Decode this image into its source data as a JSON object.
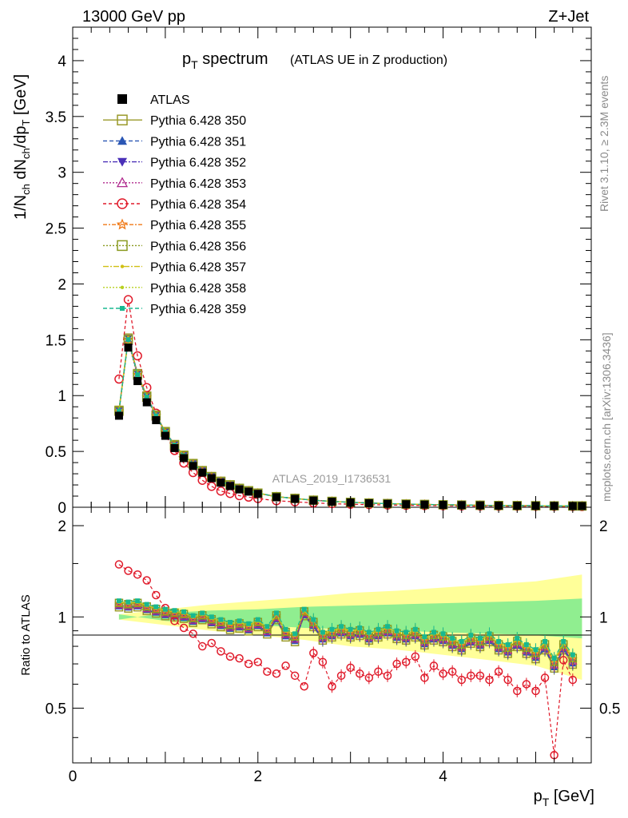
{
  "header": {
    "energy": "13000 GeV pp",
    "process": "Z+Jet",
    "title_main": "p",
    "title_sub": "T",
    "title_word": " spectrum",
    "title_note": "(ATLAS UE in Z production)",
    "analysis_id": "ATLAS_2019_I1736531",
    "side_rivet": "Rivet 3.1.10, ≥ 2.3M events",
    "side_url": "mcplots.cern.ch [arXiv:1306.3436]"
  },
  "chart_data": {
    "type": "line",
    "top_panel": {
      "ylabel_parts": [
        "1/N",
        "ch",
        " dN",
        "ch",
        "/dp",
        "T",
        " [GeV]"
      ],
      "ylim": [
        0,
        4.3
      ],
      "yticks": [
        "0",
        "0.5",
        "1",
        "1.5",
        "2",
        "2.5",
        "3",
        "3.5",
        "4"
      ],
      "ytick_values": [
        0,
        0.5,
        1,
        1.5,
        2,
        2.5,
        3,
        3.5,
        4
      ]
    },
    "ratio_panel": {
      "ylabel": "Ratio to ATLAS",
      "ylim": [
        0.33,
        2.3
      ],
      "yticks": [
        "0.5",
        "1",
        "2"
      ],
      "ytick_values": [
        0.5,
        1,
        2
      ],
      "ref_band_inner": [
        [
          0.5,
          0.98
        ],
        [
          1.0,
          1.03
        ],
        [
          1.5,
          1.05
        ],
        [
          2.0,
          1.06
        ],
        [
          2.5,
          1.08
        ],
        [
          3.0,
          1.09
        ],
        [
          3.5,
          1.1
        ],
        [
          4.0,
          1.11
        ],
        [
          4.5,
          1.12
        ],
        [
          5.0,
          1.13
        ],
        [
          5.5,
          1.15
        ]
      ],
      "ref_band_outer": [
        [
          0.5,
          1.02
        ],
        [
          1.0,
          1.06
        ],
        [
          1.5,
          1.1
        ],
        [
          2.0,
          1.13
        ],
        [
          2.5,
          1.16
        ],
        [
          3.0,
          1.2
        ],
        [
          3.5,
          1.22
        ],
        [
          4.0,
          1.25
        ],
        [
          4.5,
          1.28
        ],
        [
          5.0,
          1.31
        ],
        [
          5.5,
          1.38
        ]
      ]
    },
    "xlabel": "p",
    "xlabel_sub": "T",
    "xlabel_unit": " [GeV]",
    "xlim": [
      0,
      5.6
    ],
    "xticks": [
      "0",
      "2",
      "4"
    ],
    "xtick_values": [
      0,
      2,
      4
    ],
    "x": [
      0.5,
      0.6,
      0.7,
      0.8,
      0.9,
      1.0,
      1.1,
      1.2,
      1.3,
      1.4,
      1.5,
      1.6,
      1.7,
      1.8,
      1.9,
      2.0,
      2.2,
      2.4,
      2.6,
      2.8,
      3.0,
      3.2,
      3.4,
      3.6,
      3.8,
      4.0,
      4.2,
      4.4,
      4.6,
      4.8,
      5.0,
      5.2,
      5.4,
      5.5
    ],
    "atlas": [
      0.82,
      1.43,
      1.13,
      0.94,
      0.78,
      0.64,
      0.53,
      0.44,
      0.37,
      0.31,
      0.26,
      0.22,
      0.19,
      0.16,
      0.14,
      0.12,
      0.09,
      0.075,
      0.06,
      0.05,
      0.042,
      0.036,
      0.031,
      0.027,
      0.024,
      0.021,
      0.019,
      0.017,
      0.015,
      0.014,
      0.013,
      0.012,
      0.011,
      0.011
    ],
    "series_top": [
      {
        "name": "ATLAS",
        "marker": "square-filled",
        "color": "#000000",
        "dash": "none",
        "line": false
      },
      {
        "name": "Pythia 6.428 350",
        "marker": "square-open",
        "color": "#9a9a2a",
        "dash": "none",
        "line": true,
        "scale": 1.06
      },
      {
        "name": "Pythia 6.428 351",
        "marker": "triangle-up-filled",
        "color": "#2a56b4",
        "dash": "5,3",
        "line": true,
        "scale": 1.05
      },
      {
        "name": "Pythia 6.428 352",
        "marker": "triangle-down-filled",
        "color": "#4a30b8",
        "dash": "6,2,2,2",
        "line": true,
        "scale": 1.06
      },
      {
        "name": "Pythia 6.428 353",
        "marker": "triangle-up-open",
        "color": "#b02a8e",
        "dash": "2,2",
        "line": true,
        "scale": 1.04
      },
      {
        "name": "Pythia 6.428 354",
        "marker": "circle-open",
        "color": "#e01a2a",
        "dash": "4,3",
        "line": true,
        "scale": 1.4
      },
      {
        "name": "Pythia 6.428 355",
        "marker": "star-open",
        "color": "#f07a18",
        "dash": "5,2,2,2",
        "line": true,
        "scale": 1.05
      },
      {
        "name": "Pythia 6.428 356",
        "marker": "square-open",
        "color": "#8a9a20",
        "dash": "2,2",
        "line": true,
        "scale": 1.05
      },
      {
        "name": "Pythia 6.428 357",
        "marker": "dot",
        "color": "#d0c014",
        "dash": "7,2,2,2",
        "line": true,
        "scale": 1.06
      },
      {
        "name": "Pythia 6.428 358",
        "marker": "dot",
        "color": "#b8d020",
        "dash": "2,2",
        "line": true,
        "scale": 1.05
      },
      {
        "name": "Pythia 6.428 359",
        "marker": "square-small",
        "color": "#18b890",
        "dash": "5,3",
        "line": true,
        "scale": 1.05
      }
    ],
    "ratio_354": [
      [
        0.5,
        1.49
      ],
      [
        0.6,
        1.42
      ],
      [
        0.7,
        1.38
      ],
      [
        0.8,
        1.32
      ],
      [
        0.9,
        1.18
      ],
      [
        1.0,
        1.07
      ],
      [
        1.1,
        0.97
      ],
      [
        1.2,
        0.92
      ],
      [
        1.3,
        0.88
      ],
      [
        1.4,
        0.8
      ],
      [
        1.5,
        0.82
      ],
      [
        1.6,
        0.77
      ],
      [
        1.7,
        0.74
      ],
      [
        1.8,
        0.73
      ],
      [
        1.9,
        0.7
      ],
      [
        2.0,
        0.71
      ],
      [
        2.1,
        0.66
      ],
      [
        2.2,
        0.65
      ],
      [
        2.3,
        0.69
      ],
      [
        2.4,
        0.64
      ],
      [
        2.5,
        0.59
      ],
      [
        2.6,
        0.76
      ],
      [
        2.7,
        0.71
      ],
      [
        2.8,
        0.59
      ],
      [
        2.9,
        0.64
      ],
      [
        3.0,
        0.68
      ],
      [
        3.1,
        0.65
      ],
      [
        3.2,
        0.63
      ],
      [
        3.3,
        0.66
      ],
      [
        3.4,
        0.64
      ],
      [
        3.5,
        0.7
      ],
      [
        3.6,
        0.71
      ],
      [
        3.7,
        0.74
      ],
      [
        3.8,
        0.63
      ],
      [
        3.9,
        0.69
      ],
      [
        4.0,
        0.65
      ],
      [
        4.1,
        0.66
      ],
      [
        4.2,
        0.62
      ],
      [
        4.3,
        0.64
      ],
      [
        4.4,
        0.64
      ],
      [
        4.5,
        0.62
      ],
      [
        4.6,
        0.66
      ],
      [
        4.7,
        0.62
      ],
      [
        4.8,
        0.57
      ],
      [
        4.9,
        0.6
      ],
      [
        5.0,
        0.57
      ],
      [
        5.1,
        0.63
      ],
      [
        5.2,
        0.35
      ],
      [
        5.3,
        0.72
      ],
      [
        5.4,
        0.62
      ]
    ],
    "ratio_generic": [
      [
        0.5,
        1.1
      ],
      [
        0.6,
        1.09
      ],
      [
        0.7,
        1.1
      ],
      [
        0.8,
        1.07
      ],
      [
        0.9,
        1.05
      ],
      [
        1.0,
        1.03
      ],
      [
        1.1,
        1.02
      ],
      [
        1.2,
        1.01
      ],
      [
        1.3,
        0.98
      ],
      [
        1.4,
        1.0
      ],
      [
        1.5,
        0.97
      ],
      [
        1.6,
        0.95
      ],
      [
        1.7,
        0.93
      ],
      [
        1.8,
        0.94
      ],
      [
        1.9,
        0.92
      ],
      [
        2.0,
        0.95
      ],
      [
        2.1,
        0.9
      ],
      [
        2.2,
        1.0
      ],
      [
        2.3,
        0.88
      ],
      [
        2.4,
        0.85
      ],
      [
        2.5,
        1.03
      ],
      [
        2.6,
        0.95
      ],
      [
        2.7,
        0.86
      ],
      [
        2.8,
        0.88
      ],
      [
        2.9,
        0.9
      ],
      [
        3.0,
        0.88
      ],
      [
        3.1,
        0.89
      ],
      [
        3.2,
        0.86
      ],
      [
        3.3,
        0.88
      ],
      [
        3.4,
        0.9
      ],
      [
        3.5,
        0.87
      ],
      [
        3.6,
        0.86
      ],
      [
        3.7,
        0.88
      ],
      [
        3.8,
        0.83
      ],
      [
        3.9,
        0.86
      ],
      [
        4.0,
        0.85
      ],
      [
        4.1,
        0.82
      ],
      [
        4.2,
        0.8
      ],
      [
        4.3,
        0.84
      ],
      [
        4.4,
        0.82
      ],
      [
        4.5,
        0.85
      ],
      [
        4.6,
        0.8
      ],
      [
        4.7,
        0.78
      ],
      [
        4.8,
        0.82
      ],
      [
        4.9,
        0.78
      ],
      [
        5.0,
        0.75
      ],
      [
        5.1,
        0.8
      ],
      [
        5.2,
        0.7
      ],
      [
        5.3,
        0.8
      ],
      [
        5.4,
        0.72
      ]
    ]
  }
}
